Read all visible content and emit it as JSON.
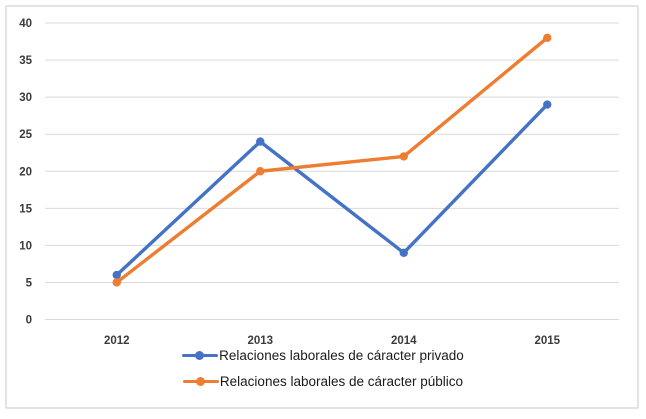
{
  "chart": {
    "background": "#ffffff",
    "border_color": "#e3e3e3",
    "gridline_color": "#d9d9d9",
    "tick_label_color": "#3b3b3b",
    "legend_text_color": "#1a1a1a"
  },
  "chart_data": {
    "type": "line",
    "categories": [
      "2012",
      "2013",
      "2014",
      "2015"
    ],
    "series": [
      {
        "name": "Relaciones laborales de cáracter privado",
        "values": [
          6,
          24,
          9,
          29
        ],
        "color": "#4472C4"
      },
      {
        "name": "Relaciones laborales de cáracter público",
        "values": [
          5,
          20,
          22,
          38
        ],
        "color": "#ED7D31"
      }
    ],
    "title": "",
    "xlabel": "",
    "ylabel": "",
    "ylim": [
      0,
      40
    ],
    "yticks": [
      0,
      5,
      10,
      15,
      20,
      25,
      30,
      35,
      40
    ],
    "grid": "horizontal",
    "legend_position": "bottom",
    "marker": "circle"
  }
}
